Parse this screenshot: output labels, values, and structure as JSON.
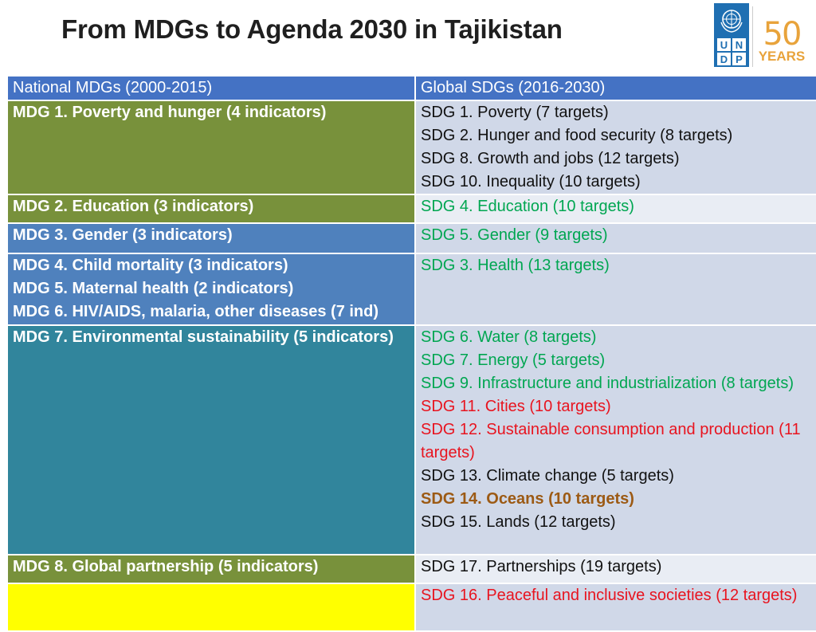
{
  "title": "From MDGs to Agenda 2030 in Tajikistan",
  "logo": {
    "letters": [
      "U",
      "N",
      "D",
      "P"
    ],
    "anniversary_number": "50",
    "anniversary_label": "YEARS",
    "colors": {
      "undp_blue": "#1f6fb2",
      "anniversary_gold": "#e8a33b"
    }
  },
  "table": {
    "headers": [
      "National MDGs (2000-2015)",
      "Global SDGs (2016-2030)"
    ],
    "rows": [
      {
        "mdg": [
          "MDG 1. Poverty and hunger (4 indicators)"
        ],
        "mdg_color": "#78913b",
        "sdgs": [
          {
            "text": "SDG 1. Poverty (7 targets)",
            "style": "normal"
          },
          {
            "text": "SDG 2. Hunger and food security (8 targets)",
            "style": "normal"
          },
          {
            "text": "SDG 8. Growth and jobs (12 targets)",
            "style": "normal"
          },
          {
            "text": "SDG 10. Inequality (10 targets)",
            "style": "normal"
          }
        ]
      },
      {
        "mdg": [
          "MDG 2. Education (3 indicators)"
        ],
        "mdg_color": "#78913b",
        "sdgs": [
          {
            "text": "SDG 4. Education (10 targets)",
            "style": "green"
          }
        ]
      },
      {
        "mdg": [
          "MDG 3. Gender (3 indicators)"
        ],
        "mdg_color": "#4f81bd",
        "sdgs": [
          {
            "text": "SDG 5. Gender (9 targets)",
            "style": "green"
          }
        ]
      },
      {
        "mdg": [
          "MDG 4. Child mortality (3 indicators)",
          "MDG 5. Maternal health (2 indicators)",
          "MDG 6. HIV/AIDS, malaria, other diseases (7 ind)"
        ],
        "mdg_color": "#4f81bd",
        "sdgs": [
          {
            "text": "SDG 3. Health (13 targets)",
            "style": "green"
          }
        ]
      },
      {
        "mdg": [
          "MDG 7. Environmental sustainability (5 indicators)"
        ],
        "mdg_color": "#31859c",
        "sdgs": [
          {
            "text": "SDG 6. Water (8 targets)",
            "style": "green"
          },
          {
            "text": "SDG 7. Energy (5 targets)",
            "style": "green"
          },
          {
            "text": "SDG 9. Infrastructure and industrialization (8 targets)",
            "style": "green"
          },
          {
            "text": "SDG 11. Cities (10 targets)",
            "style": "red"
          },
          {
            "text": "SDG 12. Sustainable consumption and production (11 targets)",
            "style": "red"
          },
          {
            "text": "SDG 13. Climate change (5 targets)",
            "style": "normal"
          },
          {
            "text": "SDG 14. Oceans (10 targets)",
            "style": "brown"
          },
          {
            "text": "SDG 15. Lands (12 targets)",
            "style": "normal"
          }
        ]
      },
      {
        "mdg": [
          "MDG 8. Global partnership (5 indicators)"
        ],
        "mdg_color": "#78913b",
        "sdgs": [
          {
            "text": "SDG 17. Partnerships (19 targets)",
            "style": "normal"
          }
        ]
      },
      {
        "mdg": [],
        "mdg_color": "#ffff00",
        "sdgs": [
          {
            "text": "SDG 16. Peaceful and inclusive societies (12 targets)",
            "style": "red"
          }
        ]
      }
    ]
  },
  "colors": {
    "header_bg": "#4472c4",
    "sdg_cell_bg": "#d0d8e8",
    "sdg_cell_alt_bg": "#e9edf4",
    "green_text": "#00a651",
    "red_text": "#e8141f",
    "brown_text": "#9c5a14"
  }
}
